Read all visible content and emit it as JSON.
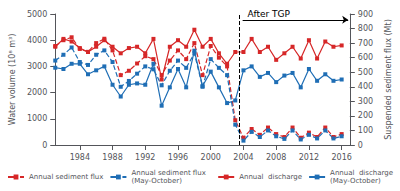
{
  "chart_data": {
    "type": "line",
    "x": [
      1981,
      1982,
      1983,
      1984,
      1985,
      1986,
      1987,
      1988,
      1989,
      1990,
      1991,
      1992,
      1993,
      1994,
      1995,
      1996,
      1997,
      1998,
      1999,
      2000,
      2001,
      2002,
      2003,
      2004,
      2005,
      2006,
      2007,
      2008,
      2009,
      2010,
      2011,
      2012,
      2013,
      2014,
      2015,
      2016
    ],
    "xlim": [
      1981,
      2017
    ],
    "xticks": [
      1984,
      1988,
      1992,
      1996,
      2000,
      2004,
      2008,
      2012,
      2016
    ],
    "ylim": [
      0,
      5000
    ],
    "yticks": [
      0,
      1000,
      2000,
      3000,
      4000,
      5000
    ],
    "y2lim": [
      0,
      900
    ],
    "y2ticks": [
      0,
      100,
      200,
      300,
      400,
      500,
      600,
      700,
      800,
      900
    ],
    "ylabel": "Water volume (10⁸ m³)",
    "y2label": "Suspended sediment flux (Mt)",
    "grid": false,
    "legend": "bottom",
    "series": [
      {
        "name": "Annual  discharge",
        "color": "#d62728",
        "marker": "square",
        "line_style": "solid",
        "values": [
          3750,
          4050,
          3950,
          3700,
          3550,
          3750,
          4000,
          3750,
          3500,
          3700,
          3750,
          3500,
          4050,
          2500,
          3750,
          4000,
          3750,
          4400,
          3750,
          4050,
          3500,
          3100,
          3550,
          3550,
          4050,
          3550,
          3750,
          3250,
          3500,
          3750,
          3300,
          4000,
          3300,
          3950,
          3750,
          3800
        ]
      },
      {
        "name": "Annual  discharge\n(May-October)",
        "color": "#1f6eb5",
        "marker": "square",
        "line_style": "solid",
        "values": [
          2950,
          2900,
          3100,
          3100,
          2700,
          2850,
          3000,
          2300,
          1850,
          2300,
          2350,
          2300,
          3100,
          1500,
          2200,
          2900,
          2200,
          3600,
          2250,
          2800,
          2200,
          1600,
          1700,
          2850,
          3000,
          2600,
          2750,
          2400,
          2650,
          2750,
          2200,
          2900,
          2450,
          2700,
          2450,
          2500
        ]
      },
      {
        "name": "Annual sediment flux",
        "color": "#d62728",
        "marker": "square",
        "line_style": "dashed",
        "axis": "y2",
        "values": [
          680,
          720,
          740,
          660,
          640,
          700,
          730,
          650,
          480,
          510,
          560,
          610,
          590,
          480,
          580,
          650,
          590,
          700,
          480,
          680,
          600,
          540,
          170,
          50,
          110,
          70,
          120,
          75,
          55,
          120,
          50,
          85,
          55,
          120,
          55,
          75
        ]
      },
      {
        "name": "Annual sediment flux\n(May-October)",
        "color": "#1f6eb5",
        "marker": "square",
        "line_style": "dashed",
        "axis": "y2",
        "values": [
          580,
          620,
          670,
          570,
          550,
          620,
          650,
          570,
          400,
          440,
          490,
          540,
          520,
          410,
          510,
          580,
          530,
          630,
          400,
          590,
          530,
          480,
          140,
          30,
          90,
          55,
          100,
          60,
          42,
          100,
          38,
          70,
          45,
          100,
          45,
          60
        ]
      }
    ],
    "vlines": [
      {
        "x": 2003.5,
        "color": "#000000",
        "line_style": "dashed"
      }
    ],
    "annotations": [
      {
        "text": "After TGP",
        "x": 2004.5,
        "y": 4810,
        "arrow": {
          "from": [
            2003.9,
            4780
          ],
          "to": [
            2016.8,
            4780
          ]
        }
      }
    ]
  }
}
